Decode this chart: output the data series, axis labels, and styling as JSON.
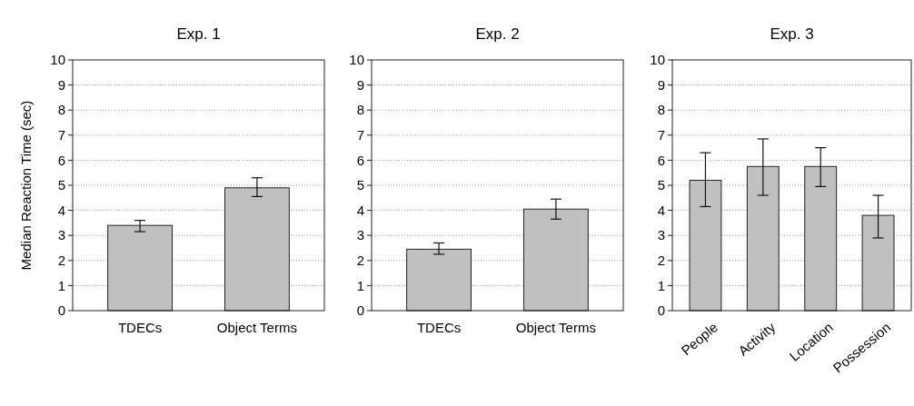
{
  "chart_data": [
    {
      "type": "bar",
      "title": "Exp. 1",
      "ylabel": "Median Reaction Time (sec)",
      "categories": [
        "TDECs",
        "Object Terms"
      ],
      "values": [
        3.4,
        4.9
      ],
      "errors": [
        [
          3.15,
          3.6
        ],
        [
          4.55,
          5.3
        ]
      ],
      "color": "#c0c0c0",
      "ylim": [
        0,
        10
      ],
      "yticks": [
        0,
        1,
        2,
        3,
        4,
        5,
        6,
        7,
        8,
        9,
        10
      ],
      "grid": "y"
    },
    {
      "type": "bar",
      "title": "Exp. 2",
      "categories": [
        "TDECs",
        "Object Terms"
      ],
      "values": [
        2.45,
        4.05
      ],
      "errors": [
        [
          2.25,
          2.7
        ],
        [
          3.65,
          4.45
        ]
      ],
      "color": "#c0c0c0",
      "ylim": [
        0,
        10
      ],
      "yticks": [
        0,
        1,
        2,
        3,
        4,
        5,
        6,
        7,
        8,
        9,
        10
      ],
      "grid": "y"
    },
    {
      "type": "bar",
      "title": "Exp. 3",
      "categories": [
        "People",
        "Activity",
        "Location",
        "Possession"
      ],
      "values": [
        5.2,
        5.75,
        5.75,
        3.8
      ],
      "errors": [
        [
          4.15,
          6.3
        ],
        [
          4.6,
          6.85
        ],
        [
          4.95,
          6.5
        ],
        [
          2.9,
          4.6
        ]
      ],
      "color": "#c0c0c0",
      "ylim": [
        0,
        10
      ],
      "yticks": [
        0,
        1,
        2,
        3,
        4,
        5,
        6,
        7,
        8,
        9,
        10
      ],
      "grid": "y"
    }
  ]
}
